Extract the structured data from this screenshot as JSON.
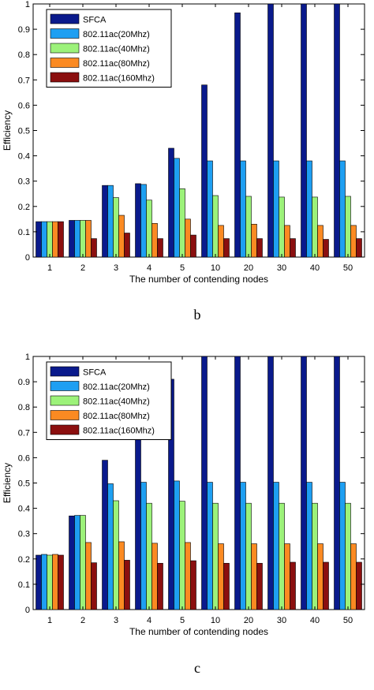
{
  "chart_data": [
    {
      "type": "bar",
      "panel_label": "b",
      "xlabel": "The number of contending nodes",
      "ylabel": "Efficiency",
      "ylim": [
        0,
        1
      ],
      "yticks": [
        "0",
        "0.1",
        "0.2",
        "0.3",
        "0.4",
        "0.5",
        "0.6",
        "0.7",
        "0.8",
        "0.9",
        "1"
      ],
      "categories": [
        "1",
        "2",
        "3",
        "4",
        "5",
        "10",
        "20",
        "30",
        "40",
        "50"
      ],
      "legend_position": "top-left",
      "series": [
        {
          "name": "SFCA",
          "color": "#0a1a8c",
          "values": [
            0.14,
            0.145,
            0.283,
            0.29,
            0.43,
            0.68,
            0.965,
            1.0,
            1.0,
            1.0
          ]
        },
        {
          "name": "802.11ac(20Mhz)",
          "color": "#1e9ff2",
          "values": [
            0.14,
            0.145,
            0.283,
            0.287,
            0.39,
            0.38,
            0.38,
            0.38,
            0.38,
            0.38
          ]
        },
        {
          "name": "802.11ac(40Mhz)",
          "color": "#9cf27a",
          "values": [
            0.14,
            0.145,
            0.235,
            0.225,
            0.27,
            0.243,
            0.24,
            0.237,
            0.237,
            0.24
          ]
        },
        {
          "name": "802.11ac(80Mhz)",
          "color": "#fb8a22",
          "values": [
            0.14,
            0.145,
            0.165,
            0.133,
            0.15,
            0.125,
            0.13,
            0.125,
            0.125,
            0.125
          ]
        },
        {
          "name": "802.11ac(160Mhz)",
          "color": "#8b0f0f",
          "values": [
            0.14,
            0.073,
            0.095,
            0.073,
            0.087,
            0.073,
            0.073,
            0.073,
            0.07,
            0.073
          ]
        }
      ]
    },
    {
      "type": "bar",
      "panel_label": "c",
      "xlabel": "The number of contending nodes",
      "ylabel": "Efficiency",
      "ylim": [
        0,
        1
      ],
      "yticks": [
        "0",
        "0.1",
        "0.2",
        "0.3",
        "0.4",
        "0.5",
        "0.6",
        "0.7",
        "0.8",
        "0.9",
        "1"
      ],
      "categories": [
        "1",
        "2",
        "3",
        "4",
        "5",
        "10",
        "20",
        "30",
        "40",
        "50"
      ],
      "legend_position": "top-left",
      "series": [
        {
          "name": "SFCA",
          "color": "#0a1a8c",
          "values": [
            0.215,
            0.37,
            0.59,
            0.72,
            0.91,
            1.0,
            1.0,
            1.0,
            1.0,
            1.0
          ]
        },
        {
          "name": "802.11ac(20Mhz)",
          "color": "#1e9ff2",
          "values": [
            0.218,
            0.372,
            0.497,
            0.503,
            0.508,
            0.503,
            0.503,
            0.503,
            0.503,
            0.503
          ]
        },
        {
          "name": "802.11ac(40Mhz)",
          "color": "#9cf27a",
          "values": [
            0.215,
            0.372,
            0.43,
            0.42,
            0.428,
            0.42,
            0.42,
            0.42,
            0.42,
            0.42
          ]
        },
        {
          "name": "802.11ac(80Mhz)",
          "color": "#fb8a22",
          "values": [
            0.218,
            0.265,
            0.268,
            0.262,
            0.265,
            0.26,
            0.26,
            0.26,
            0.26,
            0.26
          ]
        },
        {
          "name": "802.11ac(160Mhz)",
          "color": "#8b0f0f",
          "values": [
            0.215,
            0.185,
            0.195,
            0.183,
            0.193,
            0.183,
            0.183,
            0.187,
            0.187,
            0.187
          ]
        }
      ]
    }
  ]
}
